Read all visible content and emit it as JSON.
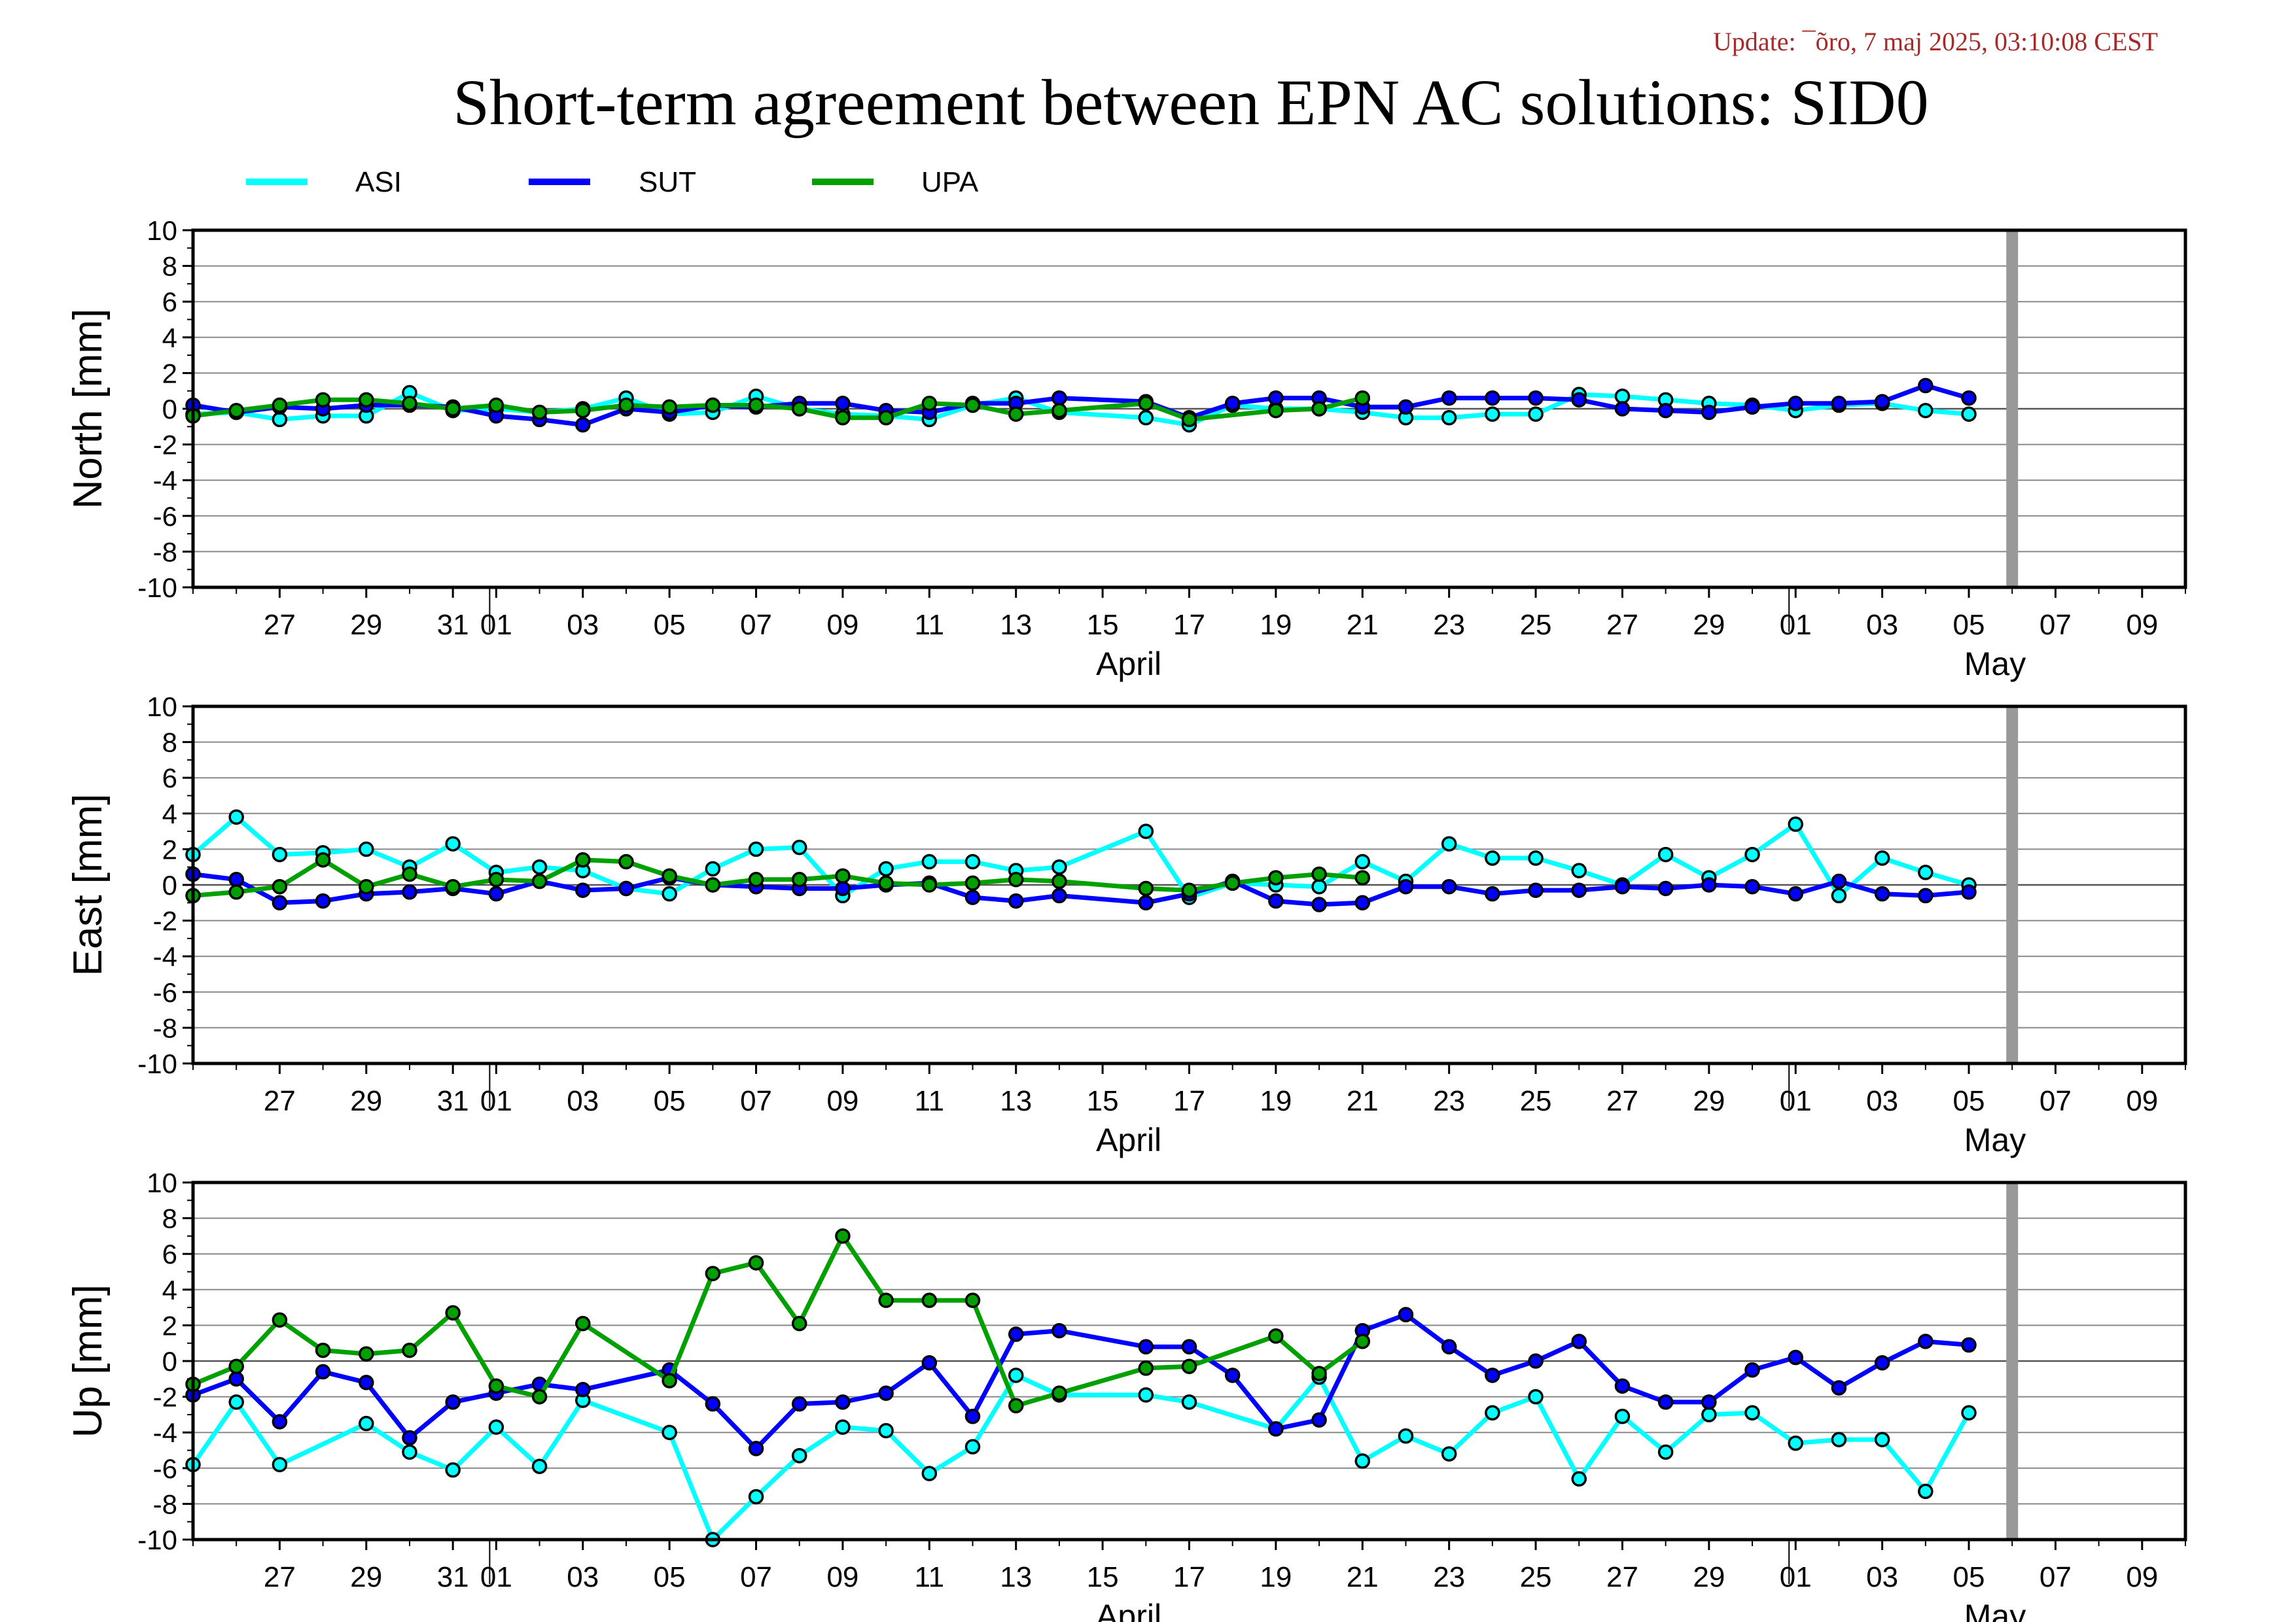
{
  "update_text": "Update: ¯õro, 7 maj 2025, 03:10:08 CEST",
  "title": "Short-term agreement between EPN AC solutions: SID0",
  "colors": {
    "ASI": "#00ffff",
    "SUT": "#0000ff",
    "UPA": "#00a000",
    "update_text": "#a52a2a",
    "today_bar": "#999999",
    "grid": "#555555"
  },
  "legend": [
    {
      "name": "ASI",
      "color": "#00ffff"
    },
    {
      "name": "SUT",
      "color": "#0000ff"
    },
    {
      "name": "UPA",
      "color": "#00a000"
    }
  ],
  "chart_data": [
    {
      "type": "line",
      "ylabel": "North [mm]",
      "ylim": [
        -10,
        10
      ],
      "yticks": [
        "10",
        "8",
        "6",
        "4",
        "2",
        "0",
        "-2",
        "-4",
        "-6",
        "-8",
        "-10"
      ],
      "xlim": [
        "2025-03-25",
        "2025-05-10"
      ],
      "today": "2025-05-06",
      "xtick_labels": [
        "27",
        "29",
        "31",
        "01",
        "03",
        "05",
        "07",
        "09",
        "11",
        "13",
        "15",
        "17",
        "19",
        "21",
        "23",
        "25",
        "27",
        "29",
        "01",
        "03",
        "05",
        "07",
        "09"
      ],
      "month_labels": [
        "April",
        "May"
      ],
      "grid": true,
      "x": [
        "03-25",
        "03-26",
        "03-27",
        "03-28",
        "03-29",
        "03-30",
        "03-31",
        "04-01",
        "04-02",
        "04-03",
        "04-04",
        "04-05",
        "04-06",
        "04-07",
        "04-08",
        "04-09",
        "04-10",
        "04-11",
        "04-12",
        "04-13",
        "04-14",
        "04-16",
        "04-17",
        "04-18",
        "04-19",
        "04-20",
        "04-21",
        "04-22",
        "04-23",
        "04-24",
        "04-25",
        "04-26",
        "04-27",
        "04-28",
        "04-29",
        "04-30",
        "05-01",
        "05-02",
        "05-03",
        "05-04",
        "05-05"
      ],
      "series": [
        {
          "name": "ASI",
          "values": [
            -0.3,
            -0.2,
            -0.6,
            -0.4,
            -0.4,
            0.9,
            -0.1,
            0.0,
            -0.2,
            0.0,
            0.6,
            -0.3,
            -0.2,
            0.7,
            0.0,
            -0.3,
            -0.4,
            -0.6,
            0.2,
            0.6,
            -0.2,
            -0.5,
            -0.9,
            0.2,
            0.0,
            0.0,
            -0.2,
            -0.5,
            -0.5,
            -0.3,
            -0.3,
            0.8,
            0.7,
            0.5,
            0.3,
            0.2,
            -0.1,
            0.2,
            0.3,
            -0.1,
            -0.3
          ]
        },
        {
          "name": "SUT",
          "values": [
            0.2,
            -0.2,
            0.1,
            0.0,
            0.2,
            0.2,
            0.1,
            -0.4,
            -0.6,
            -0.9,
            0.0,
            -0.2,
            0.2,
            0.1,
            0.3,
            0.3,
            -0.1,
            -0.2,
            0.3,
            0.3,
            0.6,
            0.4,
            -0.5,
            0.3,
            0.6,
            0.6,
            0.1,
            0.1,
            0.6,
            0.6,
            0.6,
            0.5,
            0.0,
            -0.1,
            -0.2,
            0.1,
            0.3,
            0.3,
            0.4,
            1.3,
            0.6
          ]
        },
        {
          "name": "UPA",
          "values": [
            -0.4,
            -0.1,
            0.2,
            0.5,
            0.5,
            0.3,
            0.0,
            0.2,
            -0.2,
            -0.1,
            0.2,
            0.1,
            0.2,
            0.2,
            0.0,
            -0.5,
            -0.5,
            0.3,
            0.2,
            -0.3,
            -0.1,
            0.3,
            -0.6,
            null,
            -0.1,
            0.0,
            0.6,
            null,
            null,
            null,
            null,
            null,
            null,
            null,
            null,
            null,
            null,
            null,
            null,
            null,
            null
          ]
        }
      ]
    },
    {
      "type": "line",
      "ylabel": "East [mm]",
      "ylim": [
        -10,
        10
      ],
      "yticks": [
        "10",
        "8",
        "6",
        "4",
        "2",
        "0",
        "-2",
        "-4",
        "-6",
        "-8",
        "-10"
      ],
      "xlim": [
        "2025-03-25",
        "2025-05-10"
      ],
      "today": "2025-05-06",
      "xtick_labels": [
        "27",
        "29",
        "31",
        "01",
        "03",
        "05",
        "07",
        "09",
        "11",
        "13",
        "15",
        "17",
        "19",
        "21",
        "23",
        "25",
        "27",
        "29",
        "01",
        "03",
        "05",
        "07",
        "09"
      ],
      "month_labels": [
        "April",
        "May"
      ],
      "grid": true,
      "x": [
        "03-25",
        "03-26",
        "03-27",
        "03-28",
        "03-29",
        "03-30",
        "03-31",
        "04-01",
        "04-02",
        "04-03",
        "04-04",
        "04-05",
        "04-06",
        "04-07",
        "04-08",
        "04-09",
        "04-10",
        "04-11",
        "04-12",
        "04-13",
        "04-14",
        "04-16",
        "04-17",
        "04-18",
        "04-19",
        "04-20",
        "04-21",
        "04-22",
        "04-23",
        "04-24",
        "04-25",
        "04-26",
        "04-27",
        "04-28",
        "04-29",
        "04-30",
        "05-01",
        "05-02",
        "05-03",
        "05-04",
        "05-05"
      ],
      "series": [
        {
          "name": "ASI",
          "values": [
            1.7,
            3.8,
            1.7,
            1.8,
            2.0,
            1.0,
            2.3,
            0.7,
            1.0,
            0.8,
            -0.2,
            -0.5,
            0.9,
            2.0,
            2.1,
            -0.6,
            0.9,
            1.3,
            1.3,
            0.8,
            1.0,
            3.0,
            -0.7,
            0.1,
            0.0,
            -0.1,
            1.3,
            0.2,
            2.3,
            1.5,
            1.5,
            0.8,
            0.0,
            1.7,
            0.4,
            1.7,
            3.4,
            -0.6,
            1.5,
            0.7,
            0.0
          ]
        },
        {
          "name": "SUT",
          "values": [
            0.6,
            0.3,
            -1.0,
            -0.9,
            -0.5,
            -0.4,
            -0.2,
            -0.5,
            0.2,
            -0.3,
            -0.2,
            0.4,
            0.0,
            -0.1,
            -0.2,
            -0.2,
            0.0,
            0.1,
            -0.7,
            -0.9,
            -0.6,
            -1.0,
            -0.5,
            0.2,
            -0.9,
            -1.1,
            -1.0,
            -0.1,
            -0.1,
            -0.5,
            -0.3,
            -0.3,
            -0.1,
            -0.2,
            0.0,
            -0.1,
            -0.5,
            0.2,
            -0.5,
            -0.6,
            -0.4
          ]
        },
        {
          "name": "UPA",
          "values": [
            -0.6,
            -0.4,
            -0.1,
            1.4,
            -0.1,
            0.6,
            -0.1,
            0.3,
            0.2,
            1.4,
            1.3,
            0.5,
            0.0,
            0.3,
            0.3,
            0.5,
            0.1,
            0.0,
            0.1,
            0.3,
            0.2,
            -0.2,
            -0.3,
            0.1,
            0.4,
            0.6,
            0.4,
            null,
            null,
            null,
            null,
            null,
            null,
            null,
            null,
            null,
            null,
            null,
            null,
            null,
            null
          ]
        }
      ]
    },
    {
      "type": "line",
      "ylabel": "Up [mm]",
      "ylim": [
        -10,
        10
      ],
      "yticks": [
        "10",
        "8",
        "6",
        "4",
        "2",
        "0",
        "-2",
        "-4",
        "-6",
        "-8",
        "-10"
      ],
      "xlim": [
        "2025-03-25",
        "2025-05-10"
      ],
      "today": "2025-05-06",
      "xtick_labels": [
        "27",
        "29",
        "31",
        "01",
        "03",
        "05",
        "07",
        "09",
        "11",
        "13",
        "15",
        "17",
        "19",
        "21",
        "23",
        "25",
        "27",
        "29",
        "01",
        "03",
        "05",
        "07",
        "09"
      ],
      "month_labels": [
        "April",
        "May"
      ],
      "grid": true,
      "x": [
        "03-25",
        "03-26",
        "03-27",
        "03-28",
        "03-29",
        "03-30",
        "03-31",
        "04-01",
        "04-02",
        "04-03",
        "04-04",
        "04-05",
        "04-06",
        "04-07",
        "04-08",
        "04-09",
        "04-10",
        "04-11",
        "04-12",
        "04-13",
        "04-14",
        "04-16",
        "04-17",
        "04-18",
        "04-19",
        "04-20",
        "04-21",
        "04-22",
        "04-23",
        "04-24",
        "04-25",
        "04-26",
        "04-27",
        "04-28",
        "04-29",
        "04-30",
        "05-01",
        "05-02",
        "05-03",
        "05-04",
        "05-05"
      ],
      "series": [
        {
          "name": "ASI",
          "values": [
            -5.8,
            -2.3,
            -5.8,
            null,
            -3.5,
            -5.1,
            -6.1,
            -3.7,
            -5.9,
            -2.2,
            null,
            -4.0,
            -10.3,
            -7.6,
            -5.3,
            -3.7,
            -3.9,
            -6.3,
            -4.8,
            -0.8,
            -1.9,
            -1.9,
            -2.3,
            null,
            -3.8,
            -0.9,
            -5.6,
            -4.2,
            -5.2,
            -2.9,
            -2.0,
            -6.6,
            -3.1,
            -5.1,
            -3.0,
            -2.9,
            -4.6,
            -4.4,
            -4.4,
            -7.3,
            -2.9
          ]
        },
        {
          "name": "SUT",
          "values": [
            -1.9,
            -1.0,
            -3.4,
            -0.6,
            -1.2,
            -4.3,
            -2.3,
            -1.8,
            -1.3,
            -1.6,
            null,
            -0.5,
            -2.4,
            -4.9,
            -2.4,
            -2.3,
            -1.8,
            -0.1,
            -3.1,
            1.5,
            1.7,
            0.8,
            0.8,
            -0.8,
            -3.8,
            -3.3,
            1.7,
            2.6,
            0.8,
            -0.8,
            0.0,
            1.1,
            -1.4,
            -2.3,
            -2.3,
            -0.5,
            0.2,
            -1.5,
            -0.1,
            1.1,
            0.9
          ]
        },
        {
          "name": "UPA",
          "values": [
            -1.3,
            -0.3,
            2.3,
            0.6,
            0.4,
            0.6,
            2.7,
            -1.4,
            -2.0,
            2.1,
            null,
            -1.1,
            4.9,
            5.5,
            2.1,
            7.0,
            3.4,
            3.4,
            3.4,
            -2.5,
            -1.8,
            -0.4,
            -0.3,
            null,
            1.4,
            -0.7,
            1.1,
            null,
            null,
            null,
            null,
            null,
            null,
            null,
            null,
            null,
            null,
            null,
            null,
            null,
            null
          ]
        }
      ]
    }
  ]
}
